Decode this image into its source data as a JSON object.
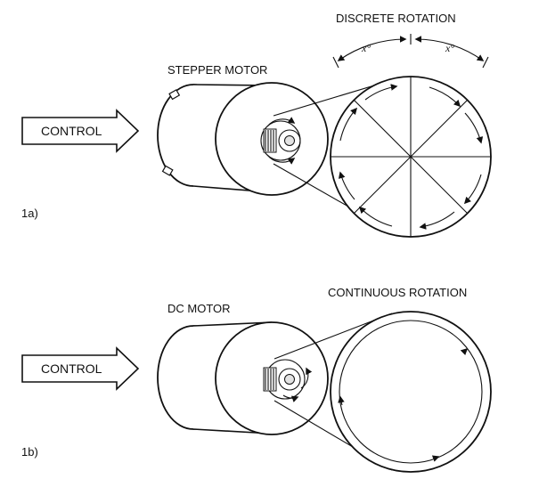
{
  "panel_a": {
    "title": "STEPPER MOTOR",
    "rotation_label": "DISCRETE ROTATION",
    "angle_label_left": "x°",
    "angle_label_right": "x°",
    "control_label": "CONTROL",
    "figure_label": "1a)"
  },
  "panel_b": {
    "title": "DC MOTOR",
    "rotation_label": "CONTINUOUS ROTATION",
    "control_label": "CONTROL",
    "figure_label": "1b)"
  }
}
